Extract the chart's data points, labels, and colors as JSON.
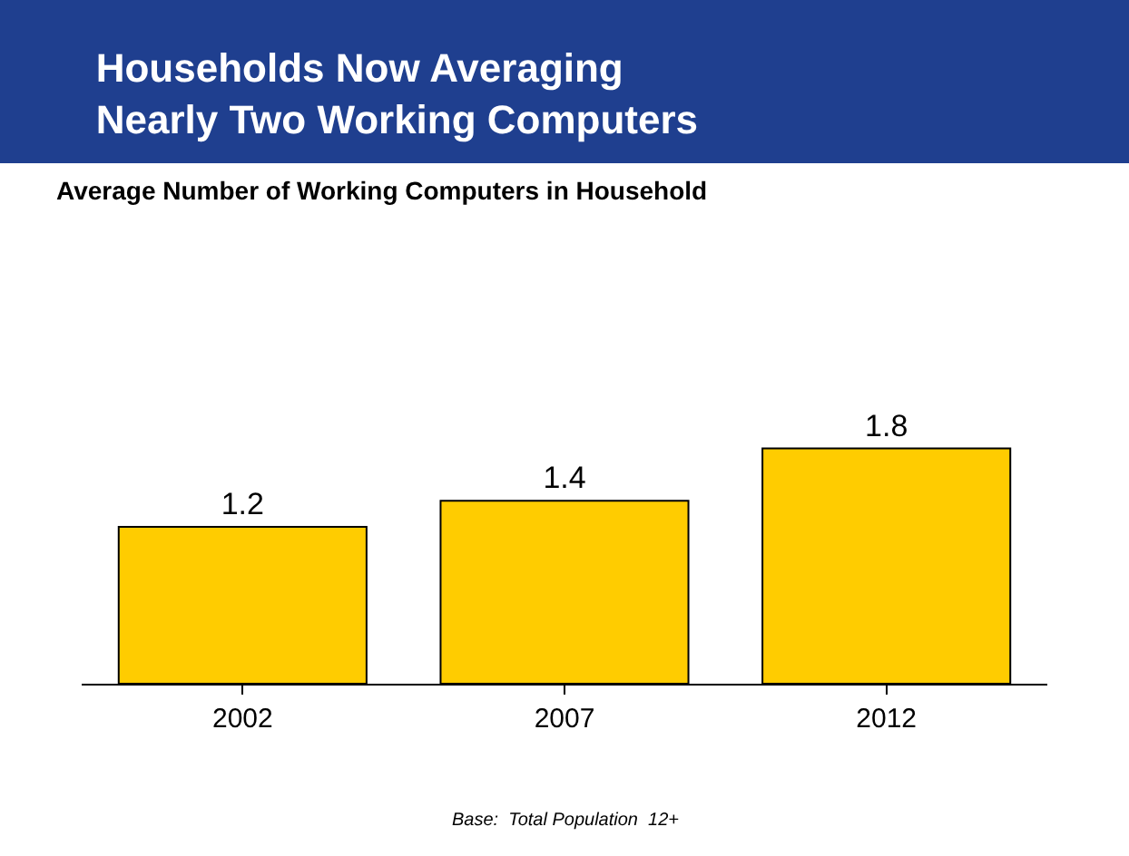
{
  "chart_data": {
    "type": "bar",
    "title": "Households Now Averaging\nNearly Two Working Computers",
    "subtitle": "Average Number of Working Computers in Household",
    "categories": [
      "2002",
      "2007",
      "2012"
    ],
    "values": [
      1.2,
      1.4,
      1.8
    ],
    "color": "#ffcc00",
    "data_labels": true,
    "annotations": [
      "Base:  Total Population  12+"
    ]
  }
}
